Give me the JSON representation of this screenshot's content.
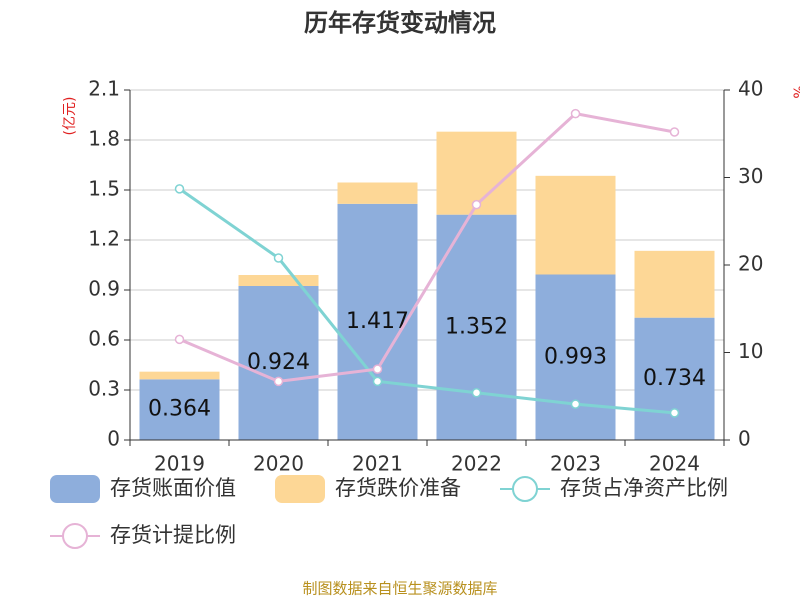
{
  "chart_data": {
    "type": "bar-line",
    "title": "历年存货变动情况",
    "ylabel": "(亿元)",
    "y2label": "%",
    "categories": [
      "2019",
      "2020",
      "2021",
      "2022",
      "2023",
      "2024"
    ],
    "ylim": [
      0,
      2.1
    ],
    "yticks": [
      0,
      0.3,
      0.6,
      0.9,
      1.2,
      1.5,
      1.8,
      2.1
    ],
    "y2lim": [
      0,
      40
    ],
    "y2ticks": [
      0,
      10,
      20,
      30,
      40
    ],
    "grid": true,
    "series": [
      {
        "name": "存货账面价值",
        "type": "bar",
        "color": "#8eaedc",
        "values": [
          0.364,
          0.924,
          1.417,
          1.352,
          0.993,
          0.734
        ],
        "show_labels": true
      },
      {
        "name": "存货跌价准备",
        "type": "bar",
        "color": "#fdd796",
        "values": [
          0.046,
          0.066,
          0.128,
          0.498,
          0.592,
          0.401
        ]
      },
      {
        "name": "存货占净资产比例",
        "type": "line",
        "axis": "y2",
        "color": "#7fd3d3",
        "values": [
          28.7,
          20.8,
          6.7,
          5.4,
          4.1,
          3.1
        ]
      },
      {
        "name": "存货计提比例",
        "type": "line",
        "axis": "y2",
        "color": "#e6b3d6",
        "values": [
          11.5,
          6.7,
          8.1,
          26.9,
          37.3,
          35.2
        ]
      }
    ],
    "source": "制图数据来自恒生聚源数据库"
  }
}
